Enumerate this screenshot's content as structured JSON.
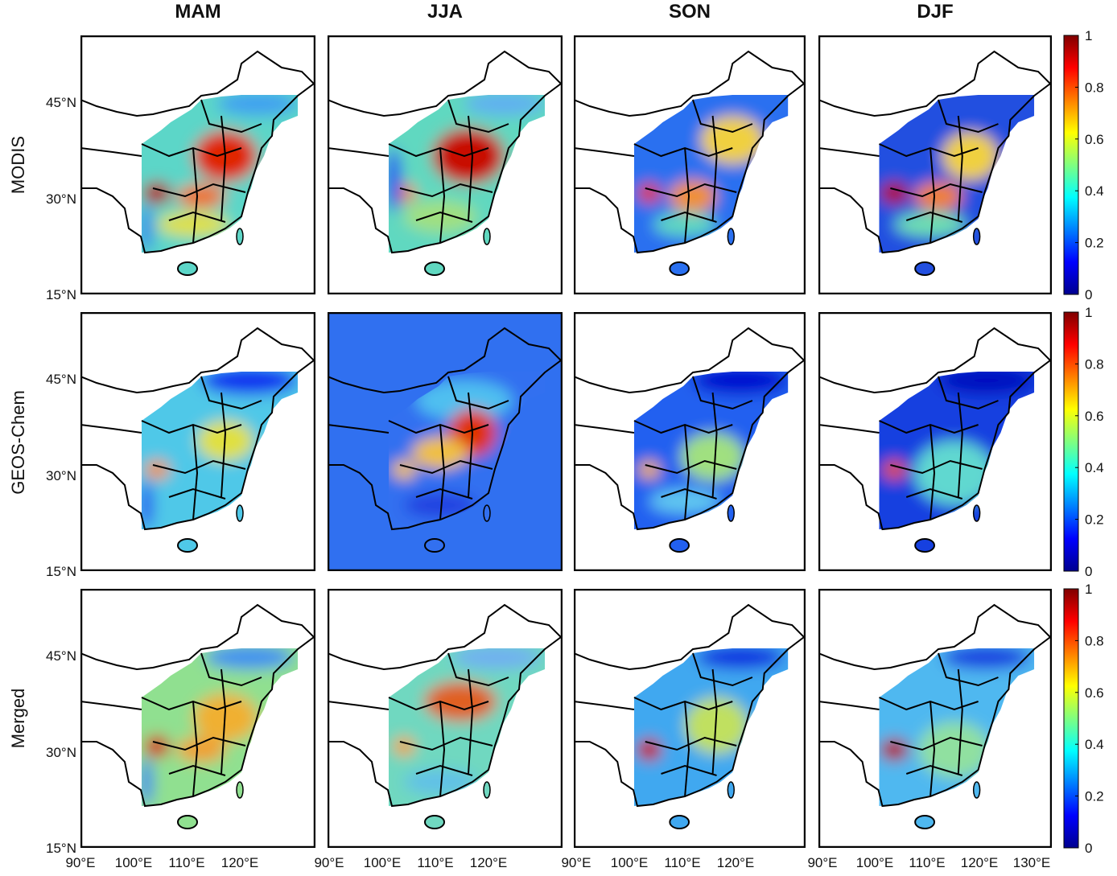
{
  "columns": [
    "MAM",
    "JJA",
    "SON",
    "DJF"
  ],
  "rows": [
    "MODIS",
    "GEOS-Chem",
    "Merged"
  ],
  "lat_ticks": [
    "45°N",
    "30°N",
    "15°N"
  ],
  "lon_ticks": [
    "90°E",
    "100°E",
    "110°E",
    "120°E",
    "130°E"
  ],
  "colorbar": {
    "ticks": [
      0,
      0.2,
      0.4,
      0.6,
      0.8,
      1
    ],
    "lim": [
      0,
      1
    ]
  }
}
